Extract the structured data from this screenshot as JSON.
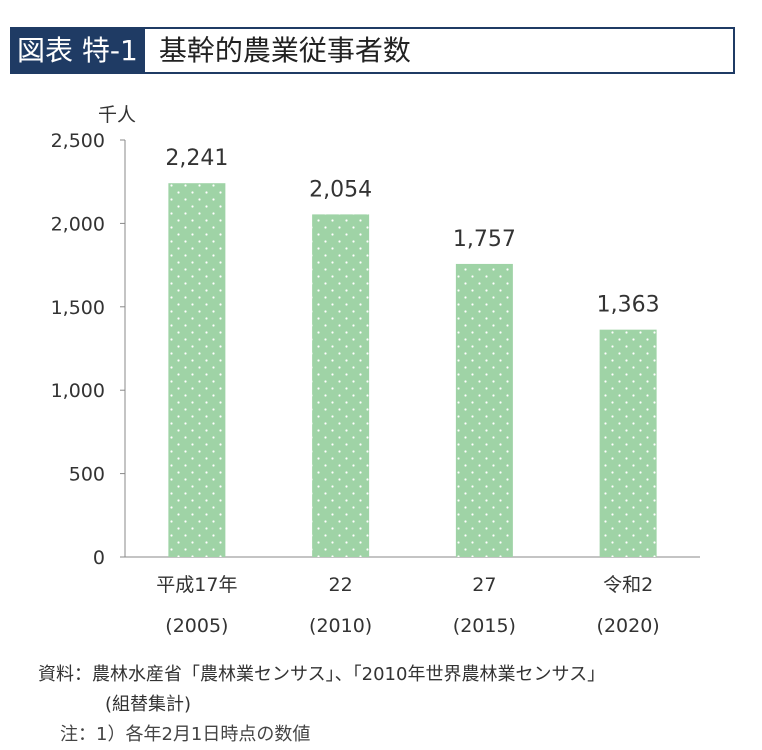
{
  "header": {
    "label": "図表 特-1",
    "title": "基幹的農業従事者数"
  },
  "colors": {
    "header_bg": "#1f3b64",
    "bar_fill": "#9fd3a6",
    "bar_dots": "#ffffff",
    "axis": "#888888"
  },
  "chart_data": {
    "type": "bar",
    "title": "基幹的農業従事者数",
    "ylabel": "千人",
    "xlabel": "",
    "categories": [
      "平成17年(2005)",
      "22(2010)",
      "27(2015)",
      "令和2(2020)"
    ],
    "category_lines": [
      [
        "平成17年",
        "(2005)"
      ],
      [
        "22",
        "(2010)"
      ],
      [
        "27",
        "(2015)"
      ],
      [
        "令和2",
        "(2020)"
      ]
    ],
    "values": [
      2241,
      2054,
      1757,
      1363
    ],
    "value_labels": [
      "2,241",
      "2,054",
      "1,757",
      "1,363"
    ],
    "ylim": [
      0,
      2500
    ],
    "yticks": [
      0,
      500,
      1000,
      1500,
      2000,
      2500
    ],
    "ytick_labels": [
      "0",
      "500",
      "1,000",
      "1,500",
      "2,000",
      "2,500"
    ],
    "grid": false,
    "legend": "none"
  },
  "footnote": {
    "source_line1": "資料：農林水産省「農林業センサス」、「2010年世界農林業センサス」",
    "source_line2": "(組替集計)",
    "note_line": "注：1）各年2月1日時点の数値"
  }
}
